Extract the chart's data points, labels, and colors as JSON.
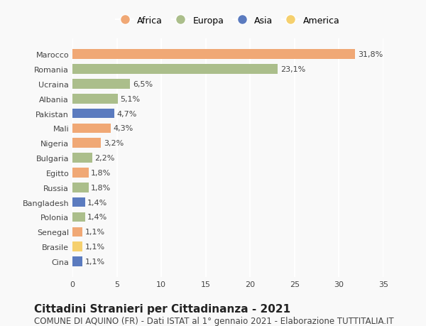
{
  "countries": [
    "Marocco",
    "Romania",
    "Ucraina",
    "Albania",
    "Pakistan",
    "Mali",
    "Nigeria",
    "Bulgaria",
    "Egitto",
    "Russia",
    "Bangladesh",
    "Polonia",
    "Senegal",
    "Brasile",
    "Cina"
  ],
  "values": [
    31.8,
    23.1,
    6.5,
    5.1,
    4.7,
    4.3,
    3.2,
    2.2,
    1.8,
    1.8,
    1.4,
    1.4,
    1.1,
    1.1,
    1.1
  ],
  "labels": [
    "31,8%",
    "23,1%",
    "6,5%",
    "5,1%",
    "4,7%",
    "4,3%",
    "3,2%",
    "2,2%",
    "1,8%",
    "1,8%",
    "1,4%",
    "1,4%",
    "1,1%",
    "1,1%",
    "1,1%"
  ],
  "continents": [
    "Africa",
    "Europa",
    "Europa",
    "Europa",
    "Asia",
    "Africa",
    "Africa",
    "Europa",
    "Africa",
    "Europa",
    "Asia",
    "Europa",
    "Africa",
    "America",
    "Asia"
  ],
  "continent_colors": {
    "Africa": "#F0A875",
    "Europa": "#ABBE8B",
    "Asia": "#5B7BBF",
    "America": "#F5D06E"
  },
  "legend_order": [
    "Africa",
    "Europa",
    "Asia",
    "America"
  ],
  "xlim": [
    0,
    35
  ],
  "xticks": [
    0,
    5,
    10,
    15,
    20,
    25,
    30,
    35
  ],
  "title": "Cittadini Stranieri per Cittadinanza - 2021",
  "subtitle": "COMUNE DI AQUINO (FR) - Dati ISTAT al 1° gennaio 2021 - Elaborazione TUTTITALIA.IT",
  "background_color": "#f9f9f9",
  "grid_color": "#ffffff",
  "bar_height": 0.65,
  "title_fontsize": 11,
  "subtitle_fontsize": 8.5,
  "label_fontsize": 8,
  "tick_fontsize": 8,
  "legend_fontsize": 9
}
